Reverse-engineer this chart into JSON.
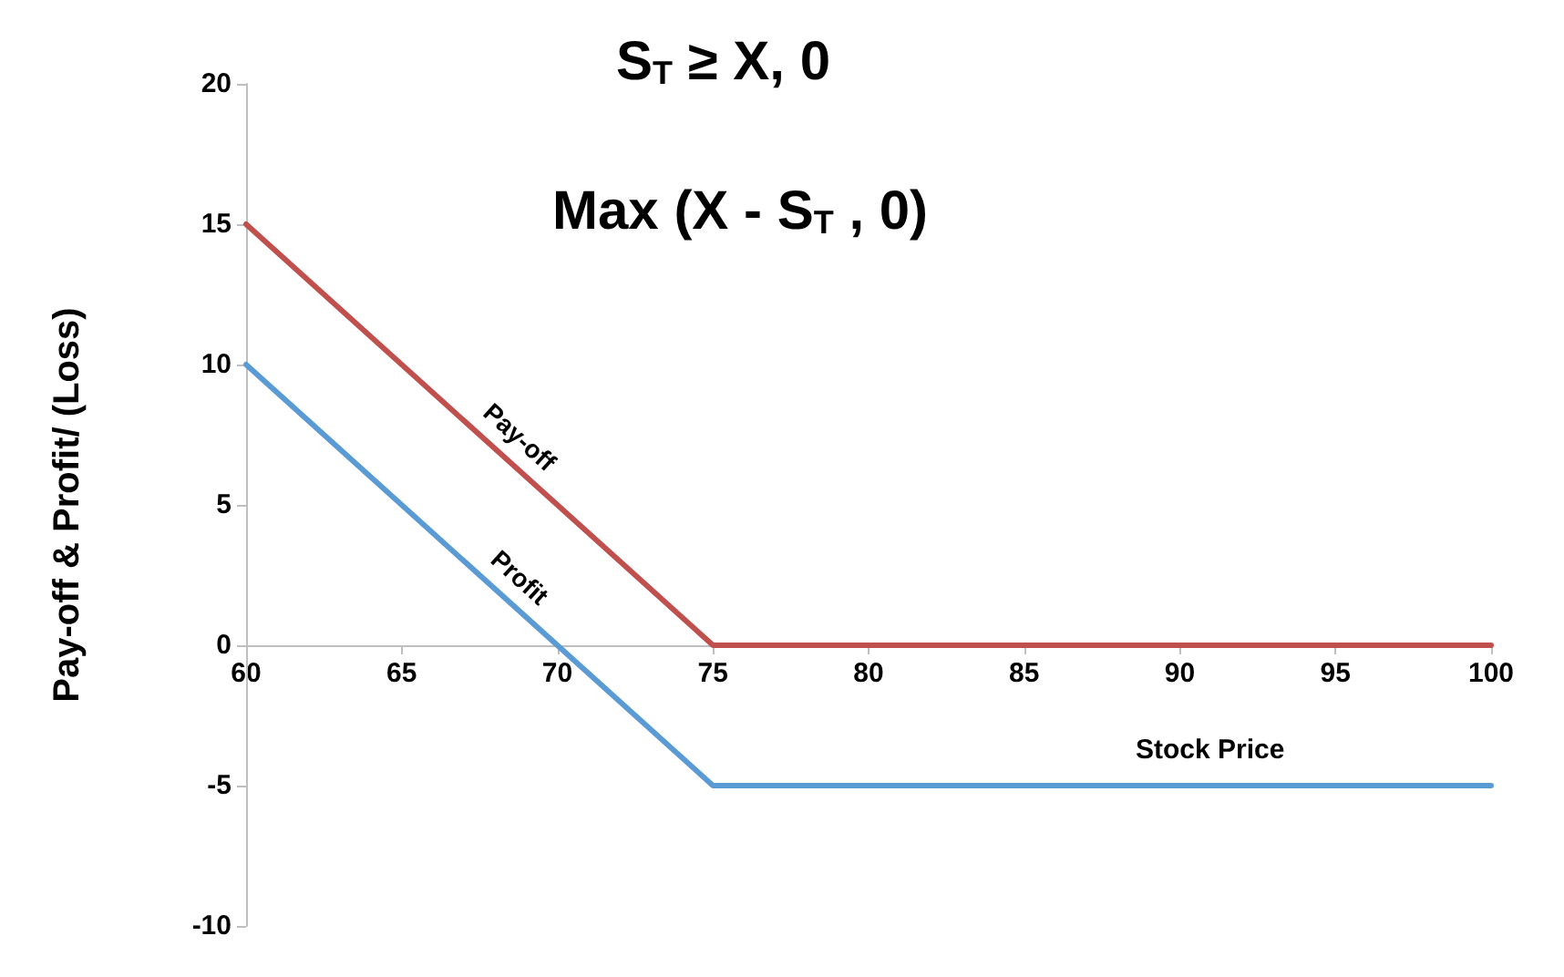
{
  "chart_data": {
    "type": "line",
    "title": "S$_{T}$ ≥ X, 0",
    "subtitle": "Max (X - S$_{T}$ , 0)",
    "xlabel": "Stock Price",
    "ylabel": "Pay-off & Profit/ (Loss)",
    "xlim": [
      60,
      100
    ],
    "xticks": [
      60,
      65,
      70,
      75,
      80,
      85,
      90,
      95,
      100
    ],
    "ylim": [
      -10,
      20
    ],
    "yticks": [
      -10,
      -5,
      0,
      5,
      10,
      15,
      20
    ],
    "series": [
      {
        "name": "Pay-off",
        "color": "#c0504d",
        "x": [
          60,
          75,
          100
        ],
        "values": [
          15,
          0,
          0
        ]
      },
      {
        "name": "Profit",
        "color": "#5b9bd5",
        "x": [
          60,
          75,
          100
        ],
        "values": [
          10,
          -5,
          -5
        ]
      }
    ],
    "grid": false,
    "legend": false,
    "marker": "none",
    "line_style": "solid"
  }
}
